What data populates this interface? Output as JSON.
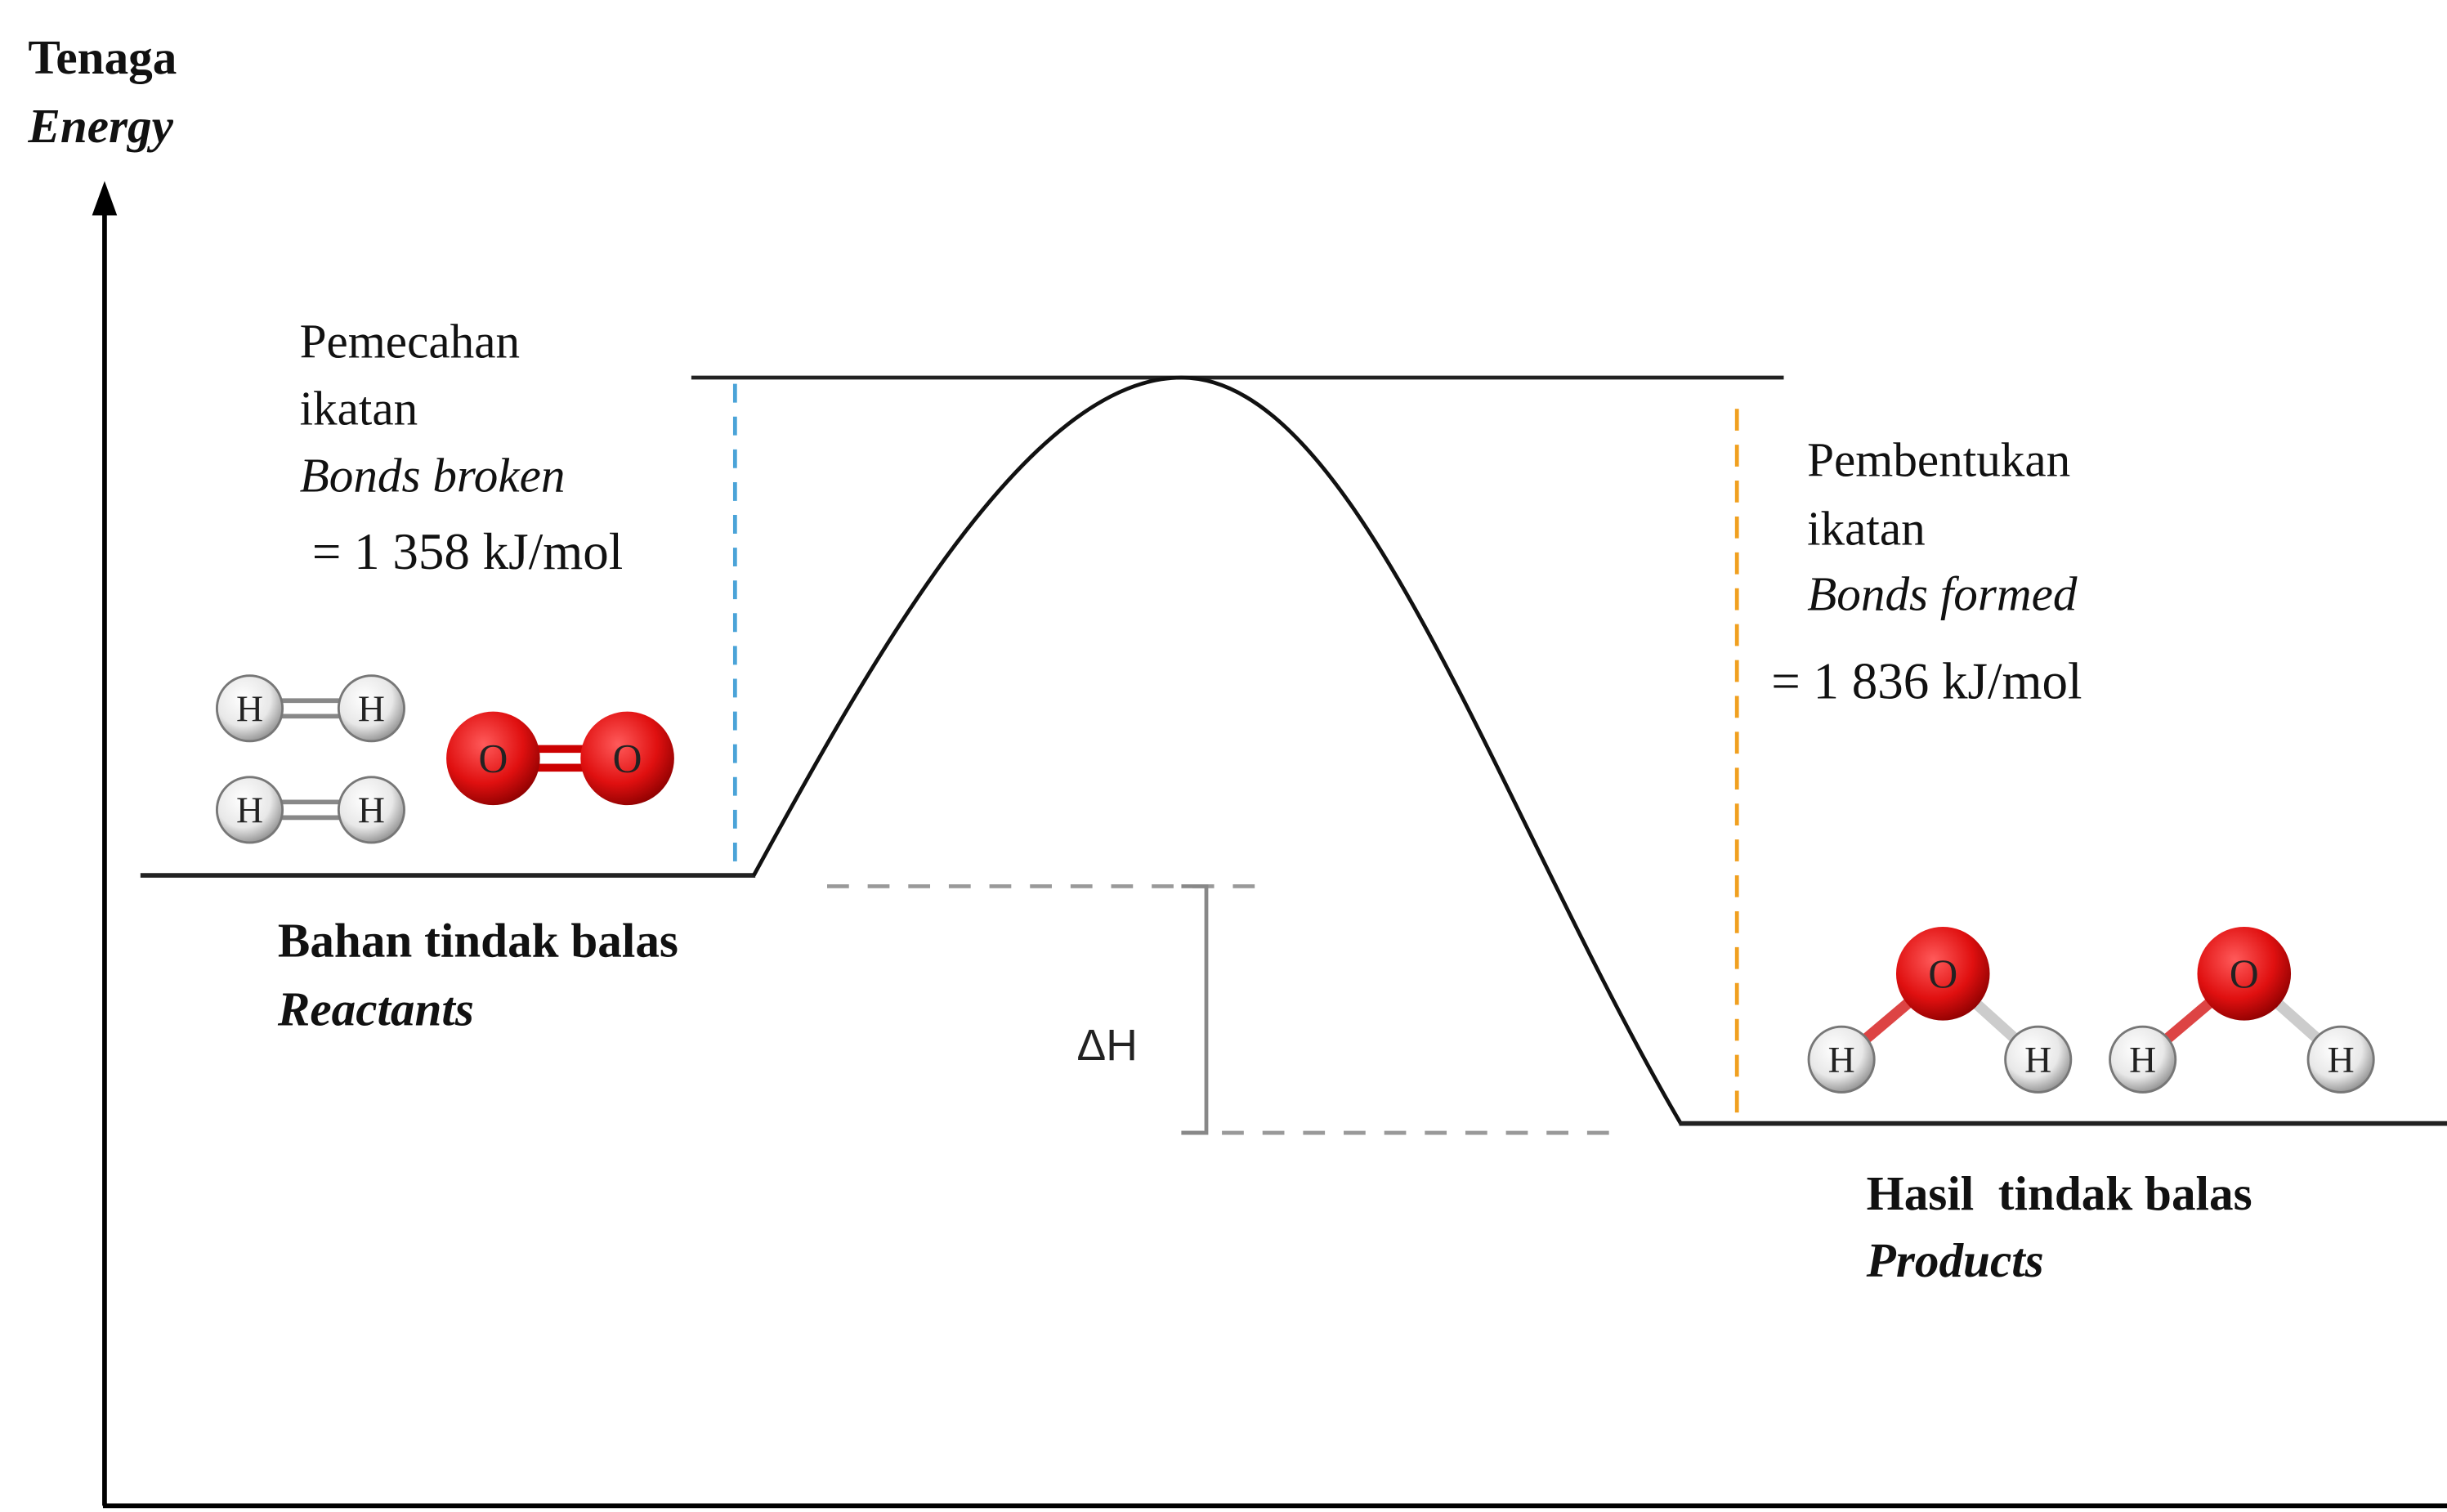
{
  "axis": {
    "title": "Tenaga",
    "title_en": "Energy"
  },
  "bonds_broken": {
    "line1": "Pemecahan",
    "line2": "ikatan",
    "label_en": "Bonds broken",
    "value": "= 1 358 kJ/mol"
  },
  "bonds_formed": {
    "line1": "Pembentukan",
    "line2": "ikatan",
    "label_en": "Bonds formed",
    "value": "= 1 836 kJ/mol"
  },
  "reactants": {
    "label": "Bahan tindak balas",
    "label_en": "Reactants"
  },
  "products": {
    "label": "Hasil  tindak balas",
    "label_en": "Products"
  },
  "delta_h": "ΔH",
  "atoms": [
    "H",
    "H",
    "H",
    "H",
    "O",
    "O",
    "O",
    "H",
    "H",
    "O",
    "H",
    "H"
  ]
}
